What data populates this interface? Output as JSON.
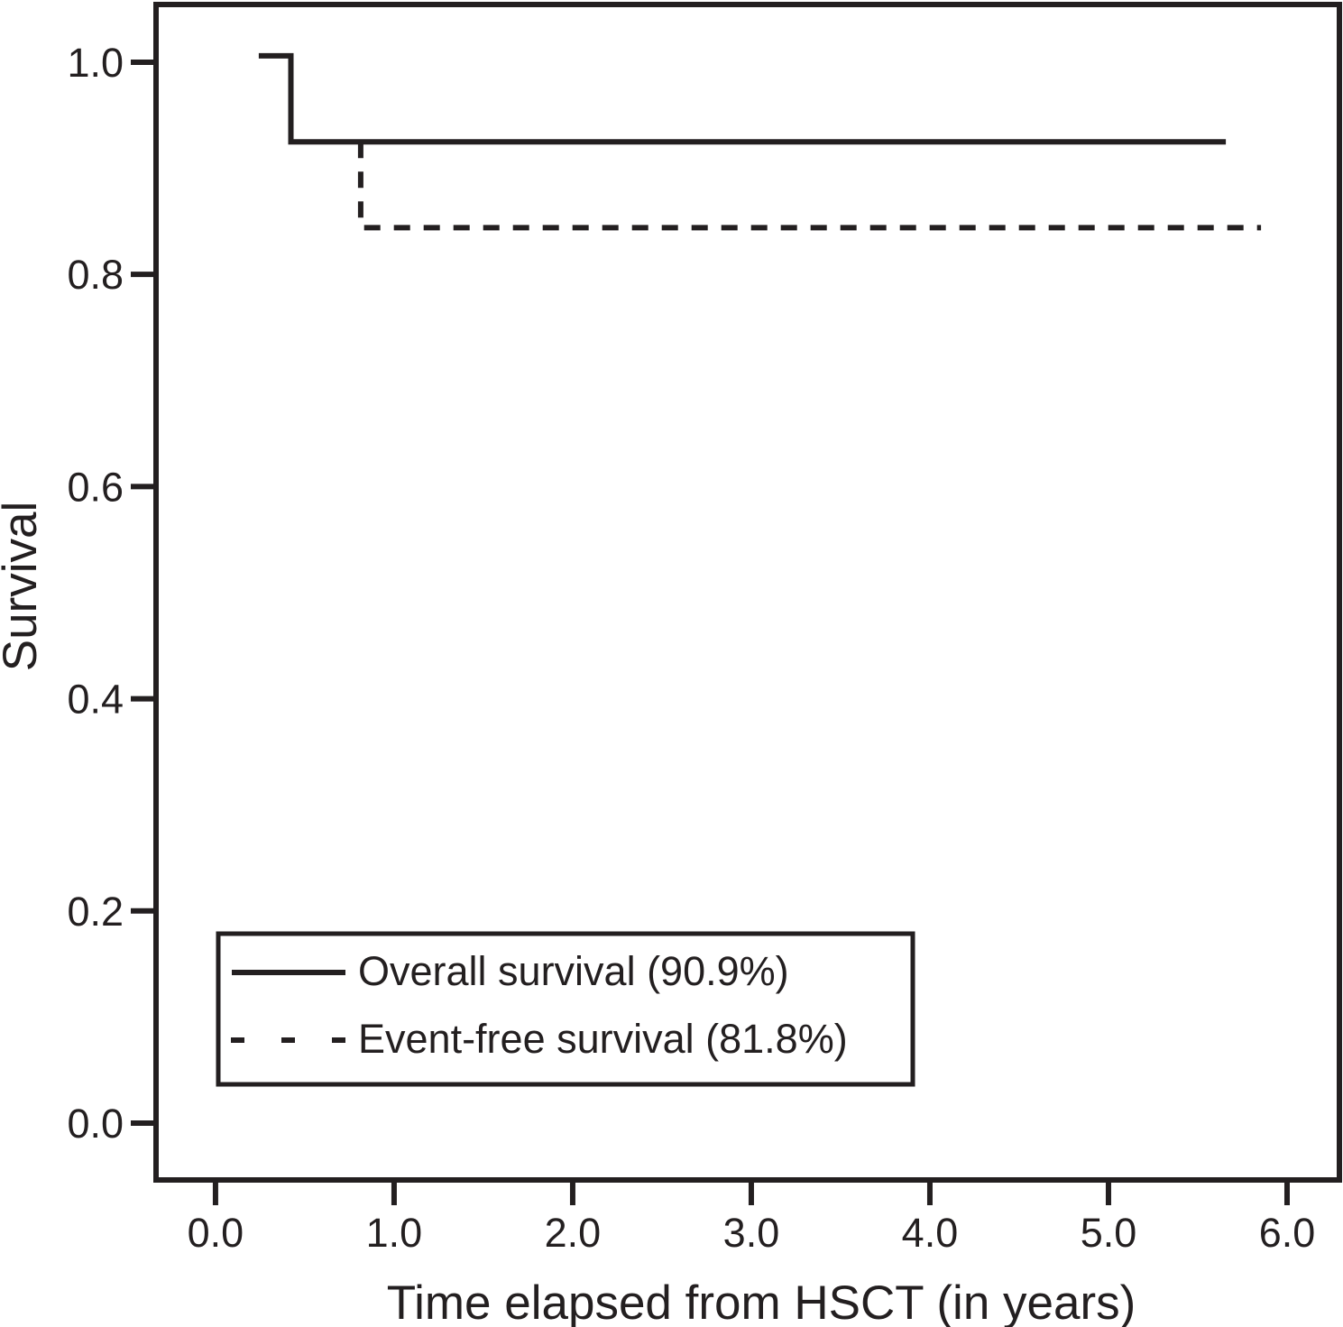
{
  "figure": {
    "kind": "kaplan-meier-survival-plot"
  },
  "colors": {
    "ink": "#231f20",
    "background": "#ffffff"
  },
  "chart_data": {
    "type": "line",
    "line_shape": "step",
    "title": "",
    "xlabel": "Time elapsed from HSCT (in years)",
    "ylabel": "Survival",
    "grid": false,
    "xlim": [
      -0.333,
      6.293
    ],
    "ylim": [
      -0.0536,
      1.0544
    ],
    "x_ticks": [
      0.0,
      1.0,
      2.0,
      3.0,
      4.0,
      5.0,
      6.0
    ],
    "x_tick_labels": [
      "0.0",
      "1.0",
      "2.0",
      "3.0",
      "4.0",
      "5.0",
      "6.0"
    ],
    "y_ticks": [
      0.0,
      0.2,
      0.4,
      0.6,
      0.8,
      1.0
    ],
    "y_tick_labels": [
      "0.0",
      "0.2",
      "0.4",
      "0.6",
      "0.8",
      "1.0"
    ],
    "legend": {
      "position": "lower-left",
      "entries": [
        "Overall survival (90.9%)",
        "Event-free survival (81.8%)"
      ]
    },
    "series": [
      {
        "key": "overall-survival",
        "name": "Overall survival (90.9%)",
        "reported_rate_percent": 90.9,
        "style": "solid",
        "points": [
          [
            0.242,
            1.006
          ],
          [
            0.422,
            1.006
          ],
          [
            0.422,
            0.925
          ],
          [
            5.657,
            0.925
          ]
        ]
      },
      {
        "key": "event-free-survival",
        "name": "Event-free survival (81.8%)",
        "reported_rate_percent": 81.8,
        "style": "dashed",
        "points": [
          [
            0.813,
            0.925
          ],
          [
            0.813,
            0.844
          ],
          [
            5.854,
            0.844
          ]
        ]
      }
    ]
  }
}
